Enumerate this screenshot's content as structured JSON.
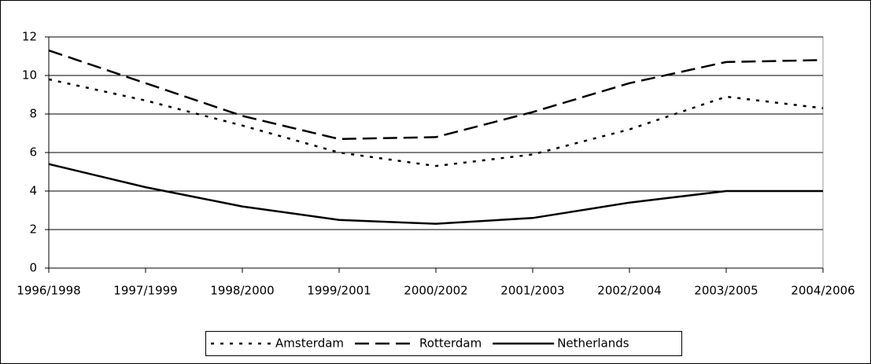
{
  "chart_data": {
    "type": "line",
    "categories": [
      "1996/1998",
      "1997/1999",
      "1998/2000",
      "1999/2001",
      "2000/2002",
      "2001/2003",
      "2002/2004",
      "2003/2005",
      "2004/2006"
    ],
    "series": [
      {
        "name": "Amsterdam",
        "color": "#000000",
        "line_style": "dotted",
        "values": [
          9.8,
          8.7,
          7.4,
          6.0,
          5.3,
          5.9,
          7.2,
          8.9,
          8.3
        ]
      },
      {
        "name": "Rotterdam",
        "color": "#000000",
        "line_style": "dashed",
        "values": [
          11.3,
          9.6,
          7.9,
          6.7,
          6.8,
          8.1,
          9.6,
          10.7,
          10.8
        ]
      },
      {
        "name": "Netherlands",
        "color": "#000000",
        "line_style": "solid",
        "values": [
          5.4,
          4.2,
          3.2,
          2.5,
          2.3,
          2.6,
          3.4,
          4.0,
          4.0
        ]
      }
    ],
    "ylim": [
      0,
      12
    ],
    "yticks": [
      0,
      2,
      4,
      6,
      8,
      10,
      12
    ],
    "grid": true,
    "legend": "bottom"
  }
}
